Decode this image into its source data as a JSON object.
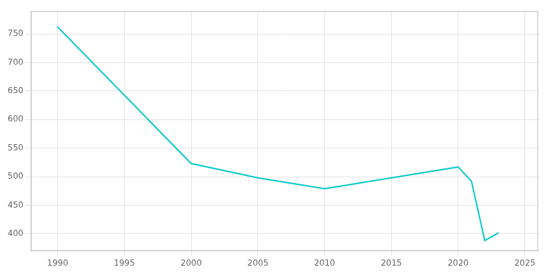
{
  "chart_data": {
    "type": "line",
    "x": [
      1990,
      2000,
      2005,
      2010,
      2020,
      2021,
      2022,
      2023
    ],
    "values": [
      762,
      523,
      498,
      479,
      517,
      492,
      388,
      401
    ],
    "color": "#00c8c8",
    "xlim": [
      1988,
      2026
    ],
    "xticks": [
      1990,
      1995,
      2000,
      2005,
      2010,
      2015,
      2020,
      2025
    ],
    "ylim": [
      370,
      790
    ],
    "yticks": [
      400,
      450,
      500,
      550,
      600,
      650,
      700,
      750
    ],
    "grid": true
  }
}
